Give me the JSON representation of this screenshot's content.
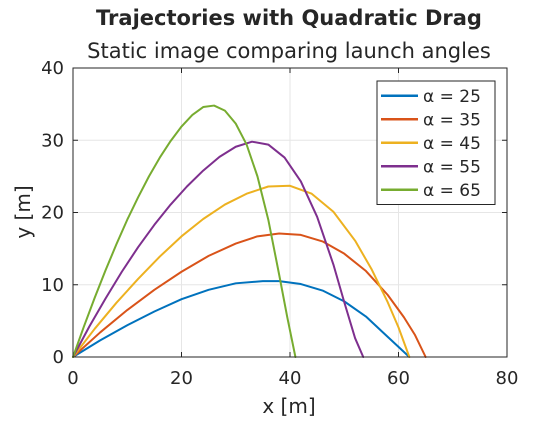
{
  "chart_data": {
    "type": "line",
    "title": "Trajectories with Quadratic Drag",
    "subtitle": "Static image comparing launch angles",
    "xlabel": "x [m]",
    "ylabel": "y [m]",
    "xlim": [
      0,
      80
    ],
    "ylim": [
      0,
      40
    ],
    "xticks": [
      "0",
      "20",
      "40",
      "60",
      "80"
    ],
    "yticks": [
      "0",
      "10",
      "20",
      "30",
      "40"
    ],
    "grid": true,
    "legend_position": "top-right",
    "series": [
      {
        "name": "α = 25",
        "color": "#0072BD",
        "x": [
          0,
          5,
          10,
          15,
          20,
          25,
          30,
          35,
          38,
          42,
          46,
          50,
          54,
          57,
          60,
          62
        ],
        "y": [
          0,
          2.3,
          4.4,
          6.3,
          8.0,
          9.3,
          10.2,
          10.5,
          10.5,
          10.1,
          9.2,
          7.7,
          5.6,
          3.5,
          1.4,
          0
        ]
      },
      {
        "name": "α = 35",
        "color": "#D95319",
        "x": [
          0,
          5,
          10,
          15,
          20,
          25,
          30,
          34,
          38,
          42,
          46,
          50,
          54,
          58,
          61,
          63,
          65
        ],
        "y": [
          0,
          3.4,
          6.5,
          9.3,
          11.8,
          14.0,
          15.7,
          16.7,
          17.1,
          16.9,
          16.0,
          14.3,
          11.9,
          8.6,
          5.5,
          3.1,
          0
        ]
      },
      {
        "name": "α = 45",
        "color": "#EDB120",
        "x": [
          0,
          4,
          8,
          12,
          16,
          20,
          24,
          28,
          32,
          36,
          40,
          44,
          48,
          52,
          55,
          58,
          60,
          62
        ],
        "y": [
          0,
          3.9,
          7.5,
          10.8,
          13.9,
          16.7,
          19.1,
          21.1,
          22.6,
          23.6,
          23.7,
          22.6,
          20.1,
          16.1,
          12.2,
          7.6,
          4.1,
          0
        ]
      },
      {
        "name": "α = 55",
        "color": "#7E2F8E",
        "x": [
          0,
          3,
          6,
          9,
          12,
          15,
          18,
          21,
          24,
          27,
          30,
          33,
          36,
          39,
          42,
          45,
          48,
          50,
          52,
          53.5
        ],
        "y": [
          0,
          4.2,
          8.1,
          11.8,
          15.2,
          18.3,
          21.1,
          23.6,
          25.8,
          27.7,
          29.1,
          29.8,
          29.4,
          27.6,
          24.3,
          19.4,
          12.8,
          7.6,
          2.6,
          0
        ]
      },
      {
        "name": "α = 65",
        "color": "#77AC30",
        "x": [
          0,
          2,
          4,
          6,
          8,
          10,
          12,
          14,
          16,
          18,
          20,
          22,
          24,
          26,
          28,
          30,
          32,
          34,
          36,
          38,
          39.5,
          41
        ],
        "y": [
          0,
          4.2,
          8.2,
          12.0,
          15.6,
          19.0,
          22.1,
          25.0,
          27.6,
          29.9,
          31.9,
          33.5,
          34.6,
          34.8,
          34.1,
          32.3,
          29.4,
          25.0,
          19.0,
          11.4,
          5.5,
          0
        ]
      }
    ]
  }
}
